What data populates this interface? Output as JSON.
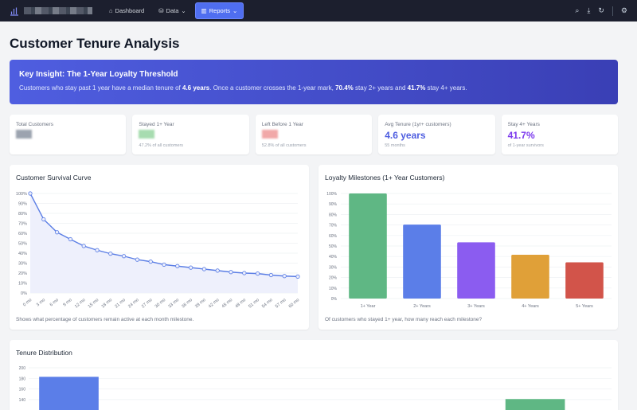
{
  "nav": {
    "dashboard": "Dashboard",
    "data": "Data",
    "reports": "Reports",
    "icons": [
      "search-icon",
      "download-icon",
      "refresh-icon",
      "settings-icon"
    ]
  },
  "page": {
    "title": "Customer Tenure Analysis"
  },
  "insight": {
    "title": "Key Insight: The 1-Year Loyalty Threshold",
    "text_1": "Customers who stay past 1 year have a median tenure of ",
    "bold_1": "4.6 years",
    "text_2": ". Once a customer crosses the 1-year mark, ",
    "bold_2": "70.4%",
    "text_3": " stay 2+ years and ",
    "bold_3": "41.7%",
    "text_4": " stay 4+ years."
  },
  "stats": [
    {
      "label": "Total Customers",
      "value": "",
      "sub": ""
    },
    {
      "label": "Stayed 1+ Year",
      "value": "",
      "sub": "47.2% of all customers"
    },
    {
      "label": "Left Before 1 Year",
      "value": "",
      "sub": "52.8% of all customers"
    },
    {
      "label": "Avg Tenure (1yr+ customers)",
      "value": "4.6 years",
      "sub": "55 months",
      "color": "#4f5ee0"
    },
    {
      "label": "Stay 4+ Years",
      "value": "41.7%",
      "sub": "of 1-year survivors",
      "color": "#7c3aed"
    }
  ],
  "survival": {
    "title": "Customer Survival Curve",
    "note": "Shows what percentage of customers remain active at each month milestone."
  },
  "milestones": {
    "title": "Loyalty Milestones (1+ Year Customers)",
    "note": "Of customers who stayed 1+ year, how many reach each milestone?"
  },
  "distribution": {
    "title": "Tenure Distribution"
  },
  "chart_data": [
    {
      "type": "line",
      "title": "Customer Survival Curve",
      "categories": [
        "0 mo",
        "3 mo",
        "6 mo",
        "9 mo",
        "12 mo",
        "15 mo",
        "18 mo",
        "21 mo",
        "24 mo",
        "27 mo",
        "30 mo",
        "33 mo",
        "36 mo",
        "39 mo",
        "42 mo",
        "45 mo",
        "48 mo",
        "51 mo",
        "54 mo",
        "57 mo",
        "60 mo"
      ],
      "values": [
        100,
        74,
        61,
        54,
        47.2,
        43,
        39.5,
        37,
        33.5,
        31.5,
        28.5,
        27,
        25.5,
        24,
        22.5,
        21,
        20,
        19.5,
        18,
        17,
        16.5
      ],
      "yticks": [
        "0%",
        "10%",
        "20%",
        "30%",
        "40%",
        "50%",
        "60%",
        "70%",
        "80%",
        "90%",
        "100%"
      ],
      "ylim": [
        0,
        100
      ],
      "color": "#5b7ee5",
      "fill": "#eef0fc",
      "grid": true
    },
    {
      "type": "bar",
      "title": "Loyalty Milestones (1+ Year Customers)",
      "categories": [
        "1+ Year",
        "2+ Years",
        "3+ Years",
        "4+ Years",
        "5+ Years"
      ],
      "values": [
        100,
        70.4,
        53.5,
        41.7,
        34.5
      ],
      "colors": [
        "#5fb784",
        "#5b7ee8",
        "#8b5cf0",
        "#e0a038",
        "#d2544a"
      ],
      "yticks": [
        "0%",
        "10%",
        "20%",
        "30%",
        "40%",
        "50%",
        "60%",
        "70%",
        "80%",
        "90%",
        "100%"
      ],
      "ylim": [
        0,
        100
      ],
      "grid": true
    },
    {
      "type": "bar",
      "title": "Tenure Distribution",
      "values": [
        183,
        null,
        null,
        null,
        141
      ],
      "colors": [
        "#5b7ee8",
        null,
        null,
        null,
        "#5fb784"
      ],
      "yticks": [
        "140",
        "160",
        "180",
        "200"
      ],
      "ylim": [
        0,
        200
      ],
      "grid": true
    }
  ]
}
